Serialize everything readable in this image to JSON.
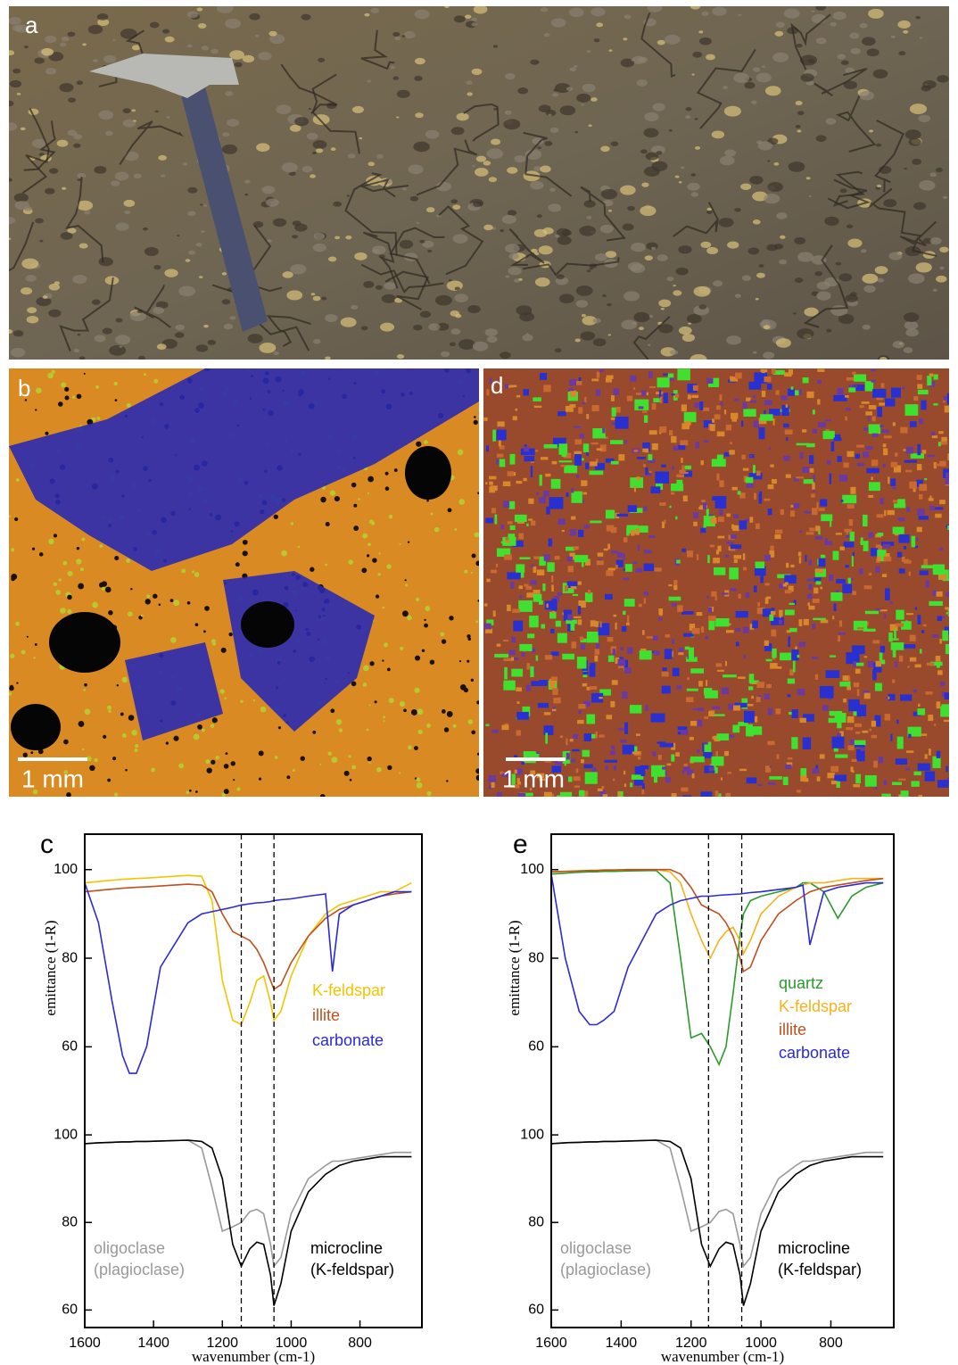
{
  "panels": {
    "a": "a",
    "b": "b",
    "d": "d",
    "scale_b": "1 mm",
    "scale_d": "1 mm"
  },
  "chart_data": [
    {
      "type": "line",
      "label": "c",
      "y_label": "emittance (1-R)",
      "x_label": "wavenumber (cm-1)",
      "xlim": [
        1600,
        620
      ],
      "xticks": [
        1600,
        1400,
        1200,
        1000,
        800
      ],
      "dashed_x": [
        1145,
        1050
      ],
      "x": [
        1600,
        1560,
        1520,
        1490,
        1470,
        1450,
        1420,
        1380,
        1300,
        1260,
        1230,
        1200,
        1170,
        1145,
        1120,
        1100,
        1080,
        1060,
        1050,
        1030,
        1000,
        950,
        900,
        880,
        860,
        820,
        780,
        740,
        700,
        650
      ],
      "top": {
        "ylim": [
          50,
          108
        ],
        "yticks": [
          60,
          80,
          100
        ],
        "series": [
          {
            "name": "K-feldspar",
            "color": "#f2c500",
            "values": [
              97,
              97.3,
              97.6,
              97.8,
              97.9,
              98,
              98.1,
              98.3,
              98.7,
              98.5,
              93,
              75,
              66,
              65,
              70,
              75,
              76,
              70,
              66,
              68,
              76,
              85,
              90,
              91,
              92,
              93,
              94,
              95,
              95,
              97
            ]
          },
          {
            "name": "illite",
            "color": "#c0501e",
            "values": [
              95,
              95.3,
              95.6,
              95.8,
              95.9,
              96,
              96.1,
              96.3,
              96.7,
              96.5,
              95,
              90,
              86,
              85,
              84,
              82,
              79,
              75,
              73,
              74,
              79,
              85,
              89,
              90,
              91,
              92,
              93,
              94,
              94.5,
              95
            ]
          },
          {
            "name": "carbonate",
            "color": "#2a2ad8",
            "values": [
              97,
              88,
              70,
              58,
              54,
              54,
              60,
              78,
              88,
              90,
              90.5,
              91,
              91.5,
              92,
              92.3,
              92.5,
              92.6,
              92.8,
              93,
              93.2,
              93.4,
              94,
              94.5,
              77,
              90,
              92,
              93,
              94,
              95,
              95
            ]
          }
        ]
      },
      "bottom": {
        "ylim": [
          56,
          110
        ],
        "yticks": [
          60,
          80,
          100
        ],
        "series": [
          {
            "name": "oligoclase (plagioclase)",
            "color": "#999999",
            "values": [
              98,
              98.2,
              98.3,
              98.4,
              98.4,
              98.5,
              98.5,
              98.6,
              98.8,
              97,
              88,
              78,
              79,
              80,
              82.5,
              83,
              82,
              75,
              70,
              72,
              82,
              90,
              93,
              94,
              94,
              94.5,
              95,
              95.5,
              96,
              96
            ]
          },
          {
            "name": "microcline (K-feldspar)",
            "color": "#000000",
            "values": [
              98,
              98.2,
              98.3,
              98.4,
              98.4,
              98.5,
              98.5,
              98.6,
              98.8,
              98.5,
              97,
              90,
              75,
              70,
              74,
              75.5,
              75,
              68,
              61,
              66,
              78,
              87,
              91,
              92,
              93,
              94,
              94.5,
              95,
              95,
              95
            ]
          }
        ]
      }
    },
    {
      "type": "line",
      "label": "e",
      "y_label": "emittance (1-R)",
      "x_label": "wavenumber (cm-1)",
      "xlim": [
        1600,
        620
      ],
      "xticks": [
        1600,
        1400,
        1200,
        1000,
        800
      ],
      "dashed_x": [
        1150,
        1055
      ],
      "x": [
        1600,
        1560,
        1520,
        1490,
        1470,
        1450,
        1420,
        1380,
        1300,
        1260,
        1230,
        1200,
        1170,
        1145,
        1120,
        1100,
        1080,
        1060,
        1050,
        1030,
        1000,
        950,
        900,
        880,
        860,
        820,
        780,
        740,
        700,
        650
      ],
      "top": {
        "ylim": [
          50,
          108
        ],
        "yticks": [
          60,
          80,
          100
        ],
        "series": [
          {
            "name": "quartz",
            "color": "#2a9a2a",
            "values": [
              99,
              99.2,
              99.4,
              99.5,
              99.5,
              99.6,
              99.6,
              99.7,
              99.8,
              97,
              80,
              62,
              63,
              60,
              56,
              60,
              72,
              85,
              90,
              93,
              94,
              95,
              96,
              97,
              97,
              95,
              89,
              94,
              96,
              97
            ]
          },
          {
            "name": "K-feldspar",
            "color": "#f6b21b",
            "values": [
              99.5,
              99.6,
              99.7,
              99.8,
              99.8,
              99.9,
              99.9,
              100,
              100,
              99.5,
              97,
              90,
              84,
              80,
              84,
              86,
              87,
              84,
              81,
              84,
              90,
              94,
              96,
              96.5,
              97,
              97,
              97.5,
              98,
              98,
              98
            ]
          },
          {
            "name": "illite",
            "color": "#c0501e",
            "values": [
              99.5,
              99.6,
              99.7,
              99.8,
              99.8,
              99.9,
              99.9,
              100,
              100,
              100,
              99,
              96,
              92,
              91,
              90,
              88,
              85,
              80,
              77,
              78,
              84,
              90,
              93,
              94,
              95,
              96,
              96.5,
              97,
              97.5,
              98
            ]
          },
          {
            "name": "carbonate",
            "color": "#2a2ad8",
            "values": [
              99,
              80,
              68,
              65,
              65,
              66,
              68,
              78,
              90,
              92,
              93,
              93.5,
              94,
              94,
              94.2,
              94.3,
              94.4,
              94.5,
              94.6,
              94.8,
              95,
              95.5,
              96,
              96.5,
              83,
              95,
              96,
              96.5,
              97,
              97
            ]
          }
        ]
      },
      "bottom": {
        "ylim": [
          56,
          110
        ],
        "yticks": [
          60,
          80,
          100
        ],
        "series": [
          {
            "name": "oligoclase (plagioclase)",
            "color": "#999999",
            "values": [
              98,
              98.2,
              98.3,
              98.4,
              98.4,
              98.5,
              98.5,
              98.6,
              98.8,
              97,
              88,
              78,
              79,
              80,
              82.5,
              83,
              82,
              75,
              70,
              72,
              82,
              90,
              93,
              94,
              94,
              94.5,
              95,
              95.5,
              96,
              96
            ]
          },
          {
            "name": "microcline (K-feldspar)",
            "color": "#000000",
            "values": [
              98,
              98.2,
              98.3,
              98.4,
              98.4,
              98.5,
              98.5,
              98.6,
              98.8,
              98.5,
              97,
              90,
              75,
              70,
              74,
              75.5,
              75,
              68,
              61,
              66,
              78,
              87,
              91,
              92,
              93,
              94,
              94.5,
              95,
              95,
              95
            ]
          }
        ]
      }
    }
  ]
}
